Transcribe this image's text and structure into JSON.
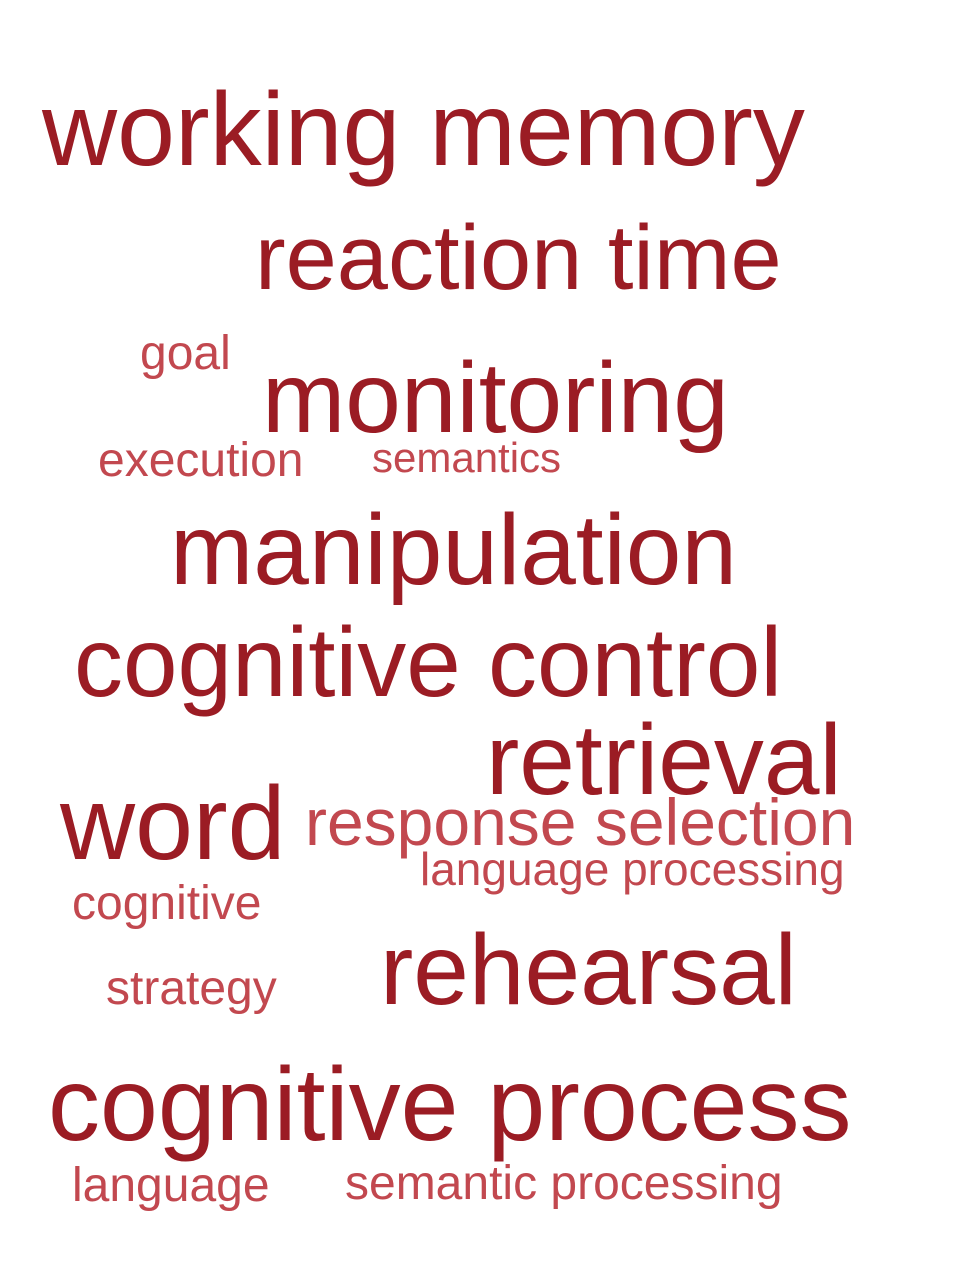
{
  "colors": {
    "dark": "#9b1c24",
    "light": "#c2484f",
    "background": "#ffffff"
  },
  "words": {
    "working_memory": "working memory",
    "reaction_time": "reaction time",
    "goal": "goal",
    "monitoring": "monitoring",
    "execution": "execution",
    "semantics": "semantics",
    "manipulation": "manipulation",
    "cognitive_control": "cognitive control",
    "retrieval": "retrieval",
    "word": "word",
    "response_selection": "response selection",
    "language_processing": "language processing",
    "cognitive": "cognitive",
    "strategy": "strategy",
    "rehearsal": "rehearsal",
    "cognitive_process": "cognitive process",
    "language": "language",
    "semantic_processing": "semantic processing"
  }
}
